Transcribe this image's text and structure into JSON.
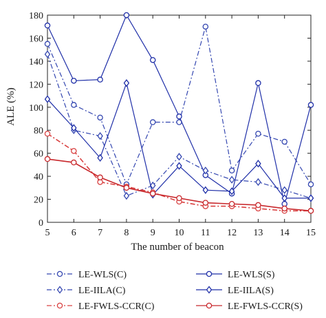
{
  "chart_data": {
    "type": "line",
    "xlabel": "The number of beacon",
    "ylabel": "ALE (%)",
    "xlim": [
      5,
      15
    ],
    "ylim": [
      0,
      180
    ],
    "x": [
      5,
      6,
      7,
      8,
      9,
      10,
      11,
      12,
      13,
      14,
      15
    ],
    "x_ticks": [
      "5",
      "6",
      "7",
      "8",
      "9",
      "10",
      "11",
      "12",
      "13",
      "14",
      "15"
    ],
    "y_ticks": [
      "0",
      "20",
      "40",
      "60",
      "80",
      "100",
      "120",
      "140",
      "160",
      "180"
    ],
    "grid": false,
    "legend_position": "bottom",
    "series": [
      {
        "name": "LE-WLS(C)",
        "color": "#3346b0",
        "dash": "dashdot",
        "marker": "circle",
        "values": [
          155,
          102,
          91,
          33,
          87,
          87,
          170,
          45,
          77,
          70,
          33
        ]
      },
      {
        "name": "LE-WLS(S)",
        "color": "#1f2fa8",
        "dash": "solid",
        "marker": "circle",
        "values": [
          171,
          123,
          124,
          180,
          141,
          92,
          41,
          25,
          121,
          16,
          102
        ]
      },
      {
        "name": "LE-IILA(C)",
        "color": "#3346b0",
        "dash": "dashdot",
        "marker": "diamond",
        "values": [
          146,
          80,
          75,
          23,
          32,
          57,
          45,
          37,
          35,
          28,
          21
        ]
      },
      {
        "name": "LE-IILA(S)",
        "color": "#1f2fa8",
        "dash": "solid",
        "marker": "diamond",
        "values": [
          107,
          82,
          56,
          121,
          24,
          49,
          28,
          27,
          51,
          21,
          21
        ]
      },
      {
        "name": "LE-FWLS-CCR(C)",
        "color": "#d94040",
        "dash": "dashdot",
        "marker": "circle",
        "values": [
          77,
          62,
          35,
          31,
          26,
          18,
          14,
          14,
          12,
          10,
          10
        ]
      },
      {
        "name": "LE-FWLS-CCR(S)",
        "color": "#c8282c",
        "dash": "solid",
        "marker": "circle",
        "values": [
          55,
          52,
          39,
          30,
          25,
          21,
          17,
          16,
          15,
          12,
          10
        ]
      }
    ]
  }
}
